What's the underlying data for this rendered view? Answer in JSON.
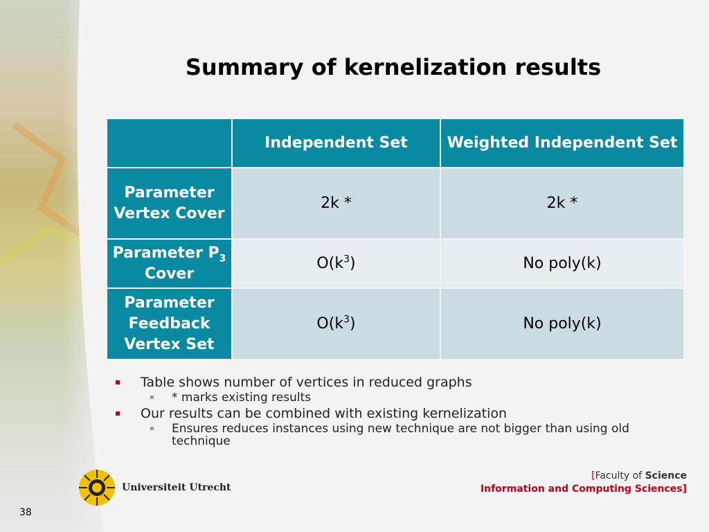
{
  "title": "Summary of kernelization results",
  "table": {
    "header": [
      "Independent Set",
      "Weighted Independent Set"
    ],
    "rows": [
      {
        "label": [
          {
            "text": "Parameter Vertex Cover"
          }
        ],
        "cells": [
          [
            {
              "text": "2k *"
            }
          ],
          [
            {
              "text": "2k *"
            }
          ]
        ]
      },
      {
        "label": [
          {
            "text": "Parameter P"
          },
          {
            "sub": "3"
          },
          {
            "text": " Cover"
          }
        ],
        "cells": [
          [
            {
              "text": "O(k"
            },
            {
              "sup": "3"
            },
            {
              "text": ")"
            }
          ],
          [
            {
              "text": "No poly(k)"
            }
          ]
        ]
      },
      {
        "label": [
          {
            "text": "Parameter Feedback Vertex Set"
          }
        ],
        "cells": [
          [
            {
              "text": "O(k"
            },
            {
              "sup": "3"
            },
            {
              "text": ")"
            }
          ],
          [
            {
              "text": "No poly(k)"
            }
          ]
        ]
      }
    ]
  },
  "bullets": [
    {
      "text": "Table shows number of vertices in reduced graphs",
      "sub": [
        "* marks existing results"
      ]
    },
    {
      "text": "Our results can be combined with existing kernelization",
      "sub": [
        "Ensures reduces instances using new technique are not bigger than using old technique"
      ]
    }
  ],
  "footer": {
    "university": "Universiteit Utrecht",
    "faculty": [
      "[",
      "Faculty of ",
      "Science"
    ],
    "department": [
      "Information and Computing Sciences",
      "]"
    ],
    "page_number": "38"
  }
}
